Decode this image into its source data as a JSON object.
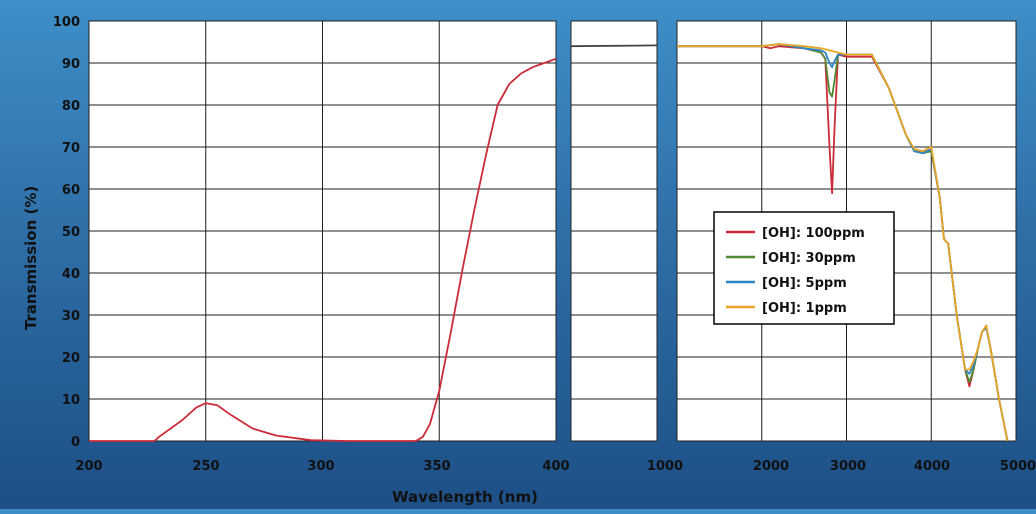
{
  "chart_data": {
    "type": "line",
    "ylabel": "Transmission (%)",
    "xlabel": "Wavelength (nm)",
    "ylim": [
      0,
      100
    ],
    "yticks": [
      "0",
      "10",
      "20",
      "30",
      "40",
      "50",
      "60",
      "70",
      "80",
      "90",
      "100"
    ],
    "grid": true,
    "legend_placement": "center-right",
    "panels": [
      {
        "xlim": [
          200,
          400
        ],
        "xticks": [
          "200",
          "250",
          "300",
          "350",
          "400"
        ],
        "series": [
          {
            "color": "#cc2b38",
            "x": [
              200,
              228,
              230,
              240,
              246,
              250,
              255,
              260,
              270,
              280,
              295,
              310,
              320,
              330,
              340,
              343,
              346,
              350,
              355,
              360,
              365,
              370,
              375,
              380,
              385,
              390,
              395,
              400
            ],
            "y": [
              0,
              0,
              1,
              5,
              8,
              9,
              8.5,
              6.5,
              3,
              1.3,
              0.2,
              0,
              0,
              0,
              0,
              1,
              4,
              12,
              26,
              41,
              55,
              68,
              80,
              85,
              87.5,
              89,
              90,
              91
            ]
          }
        ]
      },
      {
        "xlim": [
          400,
          1000
        ],
        "xticks": [
          "1000"
        ],
        "series": [
          {
            "color": "#444444",
            "x": [
              400,
              1000
            ],
            "y": [
              94,
              94.2
            ]
          }
        ]
      },
      {
        "xlim": [
          1000,
          5000
        ],
        "xticks": [
          "2000",
          "3000",
          "4000",
          "5000"
        ],
        "series": [
          {
            "name": "[OH]: 100ppm",
            "color": "#cc2b38",
            "x": [
              1000,
              1500,
              2000,
              2100,
              2200,
              2500,
              2700,
              2750,
              2800,
              2830,
              2860,
              2900,
              3000,
              3300,
              3500,
              3700,
              3800,
              3900,
              4000,
              4100,
              4150,
              4200,
              4300,
              4400,
              4450,
              4500,
              4550,
              4600,
              4650,
              4700,
              4800,
              4900
            ],
            "y": [
              94,
              94,
              94,
              93.5,
              94,
              93.5,
              92.5,
              91,
              70,
              59,
              75,
              92,
              91.5,
              91.5,
              84,
              73,
              69,
              69,
              69,
              58,
              48,
              47,
              30,
              17,
              13,
              17,
              22,
              26,
              27,
              22,
              10,
              0
            ]
          },
          {
            "name": "[OH]: 30ppm",
            "color": "#4f8a32",
            "x": [
              1000,
              1500,
              2000,
              2200,
              2500,
              2700,
              2750,
              2800,
              2830,
              2860,
              2900,
              3000,
              3300,
              3500,
              3700,
              3800,
              3900,
              4000,
              4100,
              4150,
              4200,
              4300,
              4400,
              4450,
              4500,
              4550,
              4600,
              4650,
              4700,
              4800,
              4900
            ],
            "y": [
              94,
              94,
              94,
              94.5,
              93.5,
              92.5,
              91,
              83,
              82,
              86,
              92,
              92,
              92,
              84,
              73,
              69,
              68.5,
              69,
              58,
              48,
              47,
              30,
              17,
              14,
              17,
              22,
              26,
              27,
              22,
              10,
              0
            ]
          },
          {
            "name": "[OH]: 5ppm",
            "color": "#2e86c8",
            "x": [
              1000,
              1500,
              2000,
              2200,
              2500,
              2700,
              2750,
              2800,
              2830,
              2860,
              2900,
              3000,
              3300,
              3500,
              3700,
              3800,
              3900,
              4000,
              4100,
              4150,
              4200,
              4300,
              4400,
              4450,
              4500,
              4550,
              4600,
              4650,
              4700,
              4800,
              4900
            ],
            "y": [
              94,
              94,
              94,
              94.5,
              93.5,
              93,
              92.5,
              90,
              89,
              90.5,
              92,
              92,
              92,
              84,
              73,
              69,
              68.5,
              69.5,
              58,
              48,
              47,
              30,
              17,
              16,
              18,
              22,
              26,
              27,
              22,
              10,
              0
            ]
          },
          {
            "name": "[OH]: 1ppm",
            "color": "#e8a623",
            "x": [
              1000,
              1500,
              2000,
              2200,
              2500,
              2700,
              2800,
              2900,
              3000,
              3300,
              3500,
              3700,
              3800,
              3900,
              4000,
              4100,
              4150,
              4200,
              4300,
              4400,
              4450,
              4500,
              4550,
              4600,
              4650,
              4700,
              4800,
              4900
            ],
            "y": [
              94,
              94,
              94,
              94.5,
              94,
              93.5,
              93,
              92.5,
              92,
              92,
              84,
              73,
              69.5,
              69,
              70,
              58,
              48,
              47,
              30,
              17,
              17,
              19,
              22,
              26,
              27.5,
              22,
              10,
              0
            ]
          }
        ]
      }
    ]
  }
}
